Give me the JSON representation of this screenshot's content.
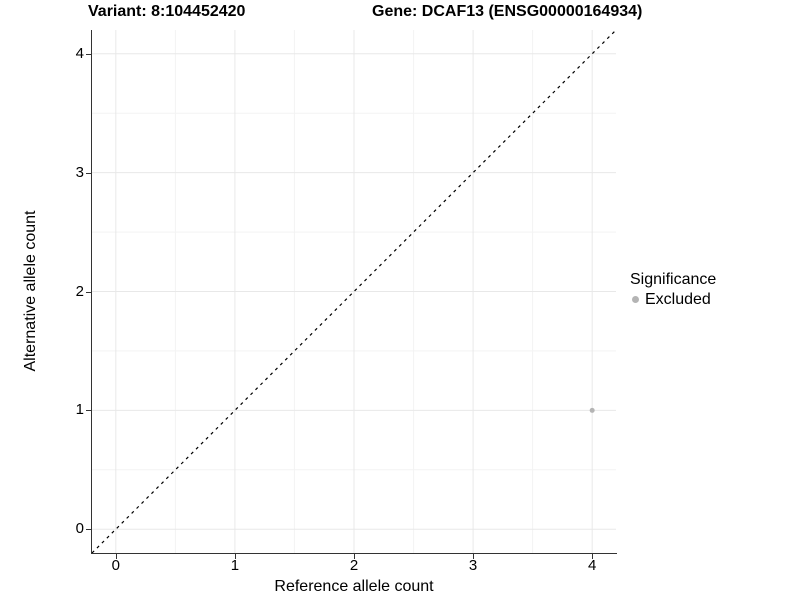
{
  "header": {
    "variant_title": "Variant: 8:104452420",
    "gene_title": "Gene: DCAF13 (ENSG00000164934)"
  },
  "chart_data": {
    "type": "scatter",
    "xlabel": "Reference allele count",
    "ylabel": "Alternative allele count",
    "xlim": [
      -0.2,
      4.2
    ],
    "ylim": [
      -0.2,
      4.2
    ],
    "xticks": [
      0,
      1,
      2,
      3,
      4
    ],
    "yticks": [
      0,
      1,
      2,
      3,
      4
    ],
    "grid": "major and minor gridlines on white panel",
    "points": [
      {
        "x": 4,
        "y": 1,
        "series": "Excluded"
      }
    ],
    "identity_line": {
      "style": "dashed",
      "from": [
        -0.2,
        -0.2
      ],
      "to": [
        4.2,
        4.2
      ]
    },
    "legend": {
      "title": "Significance",
      "position": "right",
      "entries": [
        {
          "label": "Excluded",
          "color": "#b4b4b4"
        }
      ]
    },
    "colors": {
      "point": "#b4b4b4",
      "grid_major": "#e8e8e8",
      "grid_minor": "#f3f3f3",
      "axis_line": "#333333",
      "identity_line": "#000000",
      "text": "#000000"
    }
  }
}
